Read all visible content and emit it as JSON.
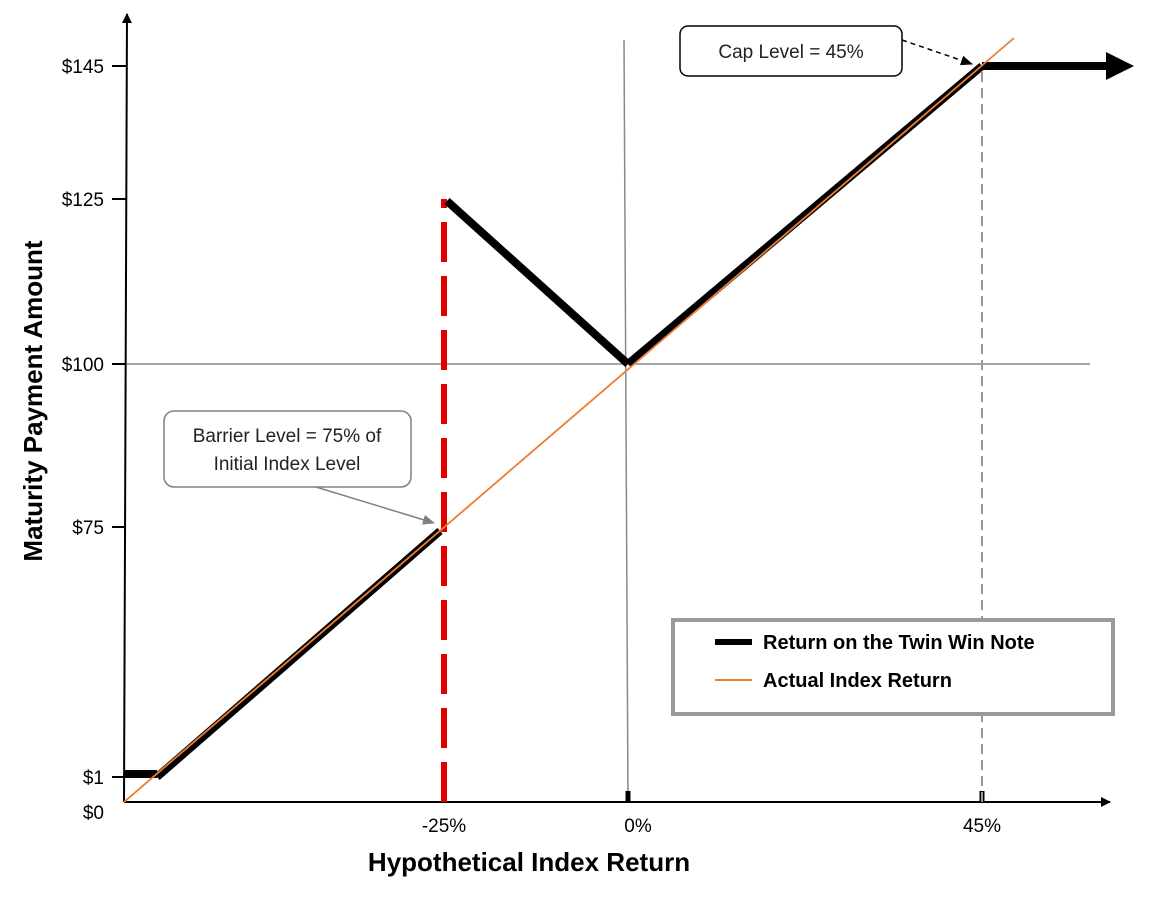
{
  "chart_data": {
    "type": "line",
    "xlabel": "Hypothetical Index Return",
    "ylabel": "Maturity Payment  Amount",
    "x_ticks": [
      {
        "value": -25,
        "label": "-25%"
      },
      {
        "value": 0,
        "label": "0%"
      },
      {
        "value": 45,
        "label": "45%"
      }
    ],
    "y_ticks": [
      {
        "value": 0,
        "label": "$0"
      },
      {
        "value": 1,
        "label": "$1"
      },
      {
        "value": 75,
        "label": "$75"
      },
      {
        "value": 100,
        "label": "$100"
      },
      {
        "value": 125,
        "label": "$125"
      },
      {
        "value": 145,
        "label": "$145"
      }
    ],
    "xlim": [
      -100,
      100
    ],
    "ylim": [
      0,
      150
    ],
    "reference_lines": {
      "x": 0,
      "y": 100
    },
    "series": [
      {
        "name": "Return on the Twin Win Note",
        "color": "#000000",
        "segments": [
          {
            "x": [
              -100,
              -93
            ],
            "y": [
              1,
              1
            ]
          },
          {
            "x": [
              -93,
              -25
            ],
            "y": [
              7,
              75
            ]
          },
          {
            "x": [
              -25,
              0
            ],
            "y": [
              125,
              100
            ]
          },
          {
            "x": [
              0,
              45
            ],
            "y": [
              100,
              145
            ]
          },
          {
            "x": [
              45,
              60
            ],
            "y": [
              145,
              145
            ]
          }
        ]
      },
      {
        "name": "Actual Index Return",
        "color": "#ED7D31",
        "segments": [
          {
            "x": [
              -100,
              51
            ],
            "y": [
              0,
              151
            ]
          }
        ]
      }
    ],
    "barrier": {
      "x": -25,
      "y_range": [
        0,
        125
      ],
      "color": "#E00000"
    },
    "cap_marker": {
      "x": 45,
      "y_range": [
        0,
        145
      ]
    },
    "annotations": [
      {
        "id": "cap",
        "lines": [
          "Cap Level = 45%"
        ],
        "target": {
          "x": 45,
          "y": 145
        }
      },
      {
        "id": "barrier",
        "lines": [
          "Barrier Level = 75% of",
          "Initial Index Level"
        ],
        "target": {
          "x": -25,
          "y": 75
        }
      }
    ],
    "legend": {
      "position": "bottom-right",
      "entries": [
        {
          "label": "Return on the Twin Win Note",
          "color": "#000000",
          "style": "thick"
        },
        {
          "label": "Actual Index Return",
          "color": "#ED7D31",
          "style": "thin"
        }
      ]
    }
  }
}
